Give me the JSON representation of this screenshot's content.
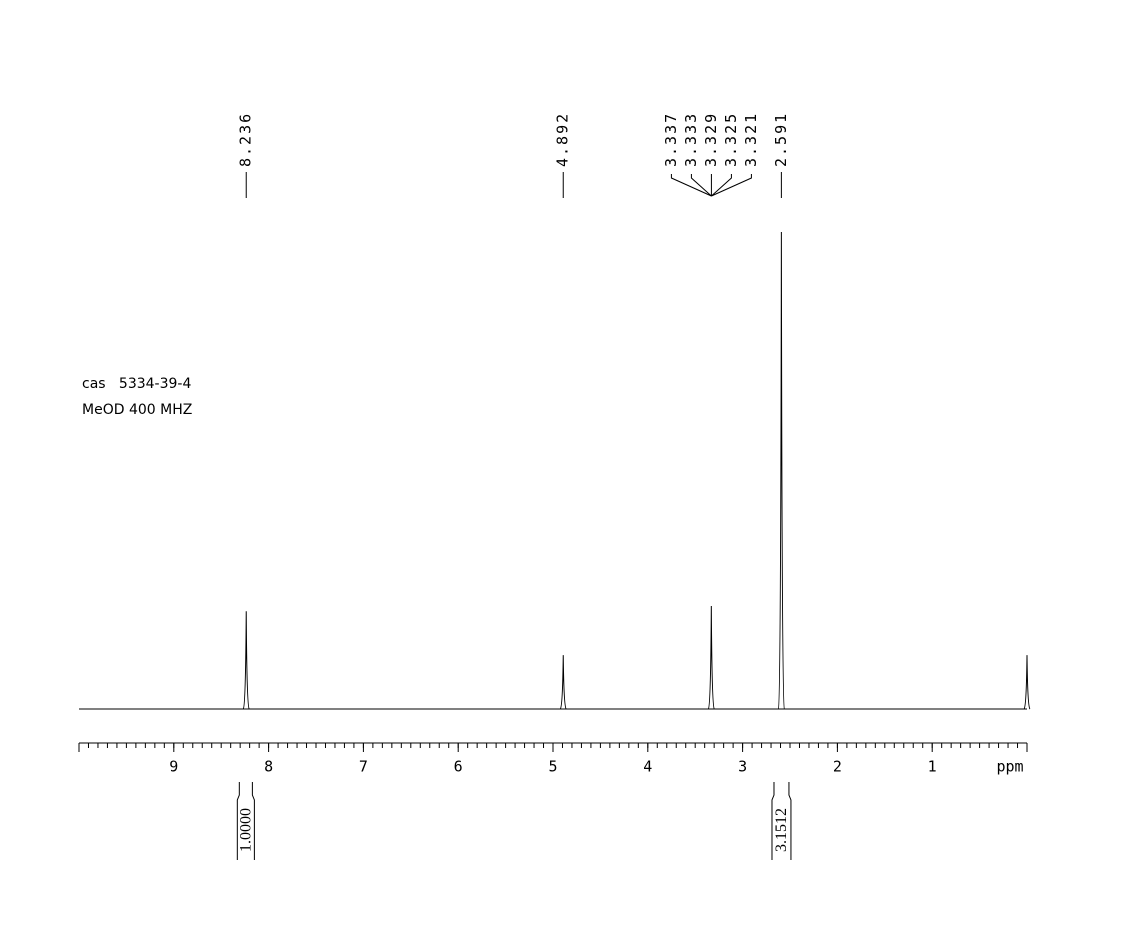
{
  "chart_data": {
    "type": "nmr",
    "xlabel": "ppm",
    "xlim": [
      10,
      0
    ],
    "xticks": [
      1,
      2,
      3,
      4,
      5,
      6,
      7,
      8,
      9
    ],
    "minor_step": 0.1,
    "ylim": [
      0,
      100
    ],
    "color": "#000000",
    "peaks": {
      "x": [
        8.236,
        4.892,
        3.33,
        2.591,
        0
      ],
      "values": [
        20.5,
        11.3,
        21.6,
        100,
        11.3
      ]
    },
    "peak_label_groups": [
      [
        8.236
      ],
      [
        4.892
      ],
      [
        3.337,
        3.333,
        3.329,
        3.325,
        3.321
      ],
      [
        2.591
      ]
    ],
    "integrals": {
      "ranges": [
        [
          8.33,
          8.15
        ],
        [
          2.69,
          2.49
        ]
      ],
      "values": [
        1,
        3.1512
      ],
      "value_labels": [
        "1.0000",
        "3.1512"
      ]
    },
    "annotations": [
      "cas   5334-39-4",
      "MeOD 400 MHZ"
    ]
  }
}
